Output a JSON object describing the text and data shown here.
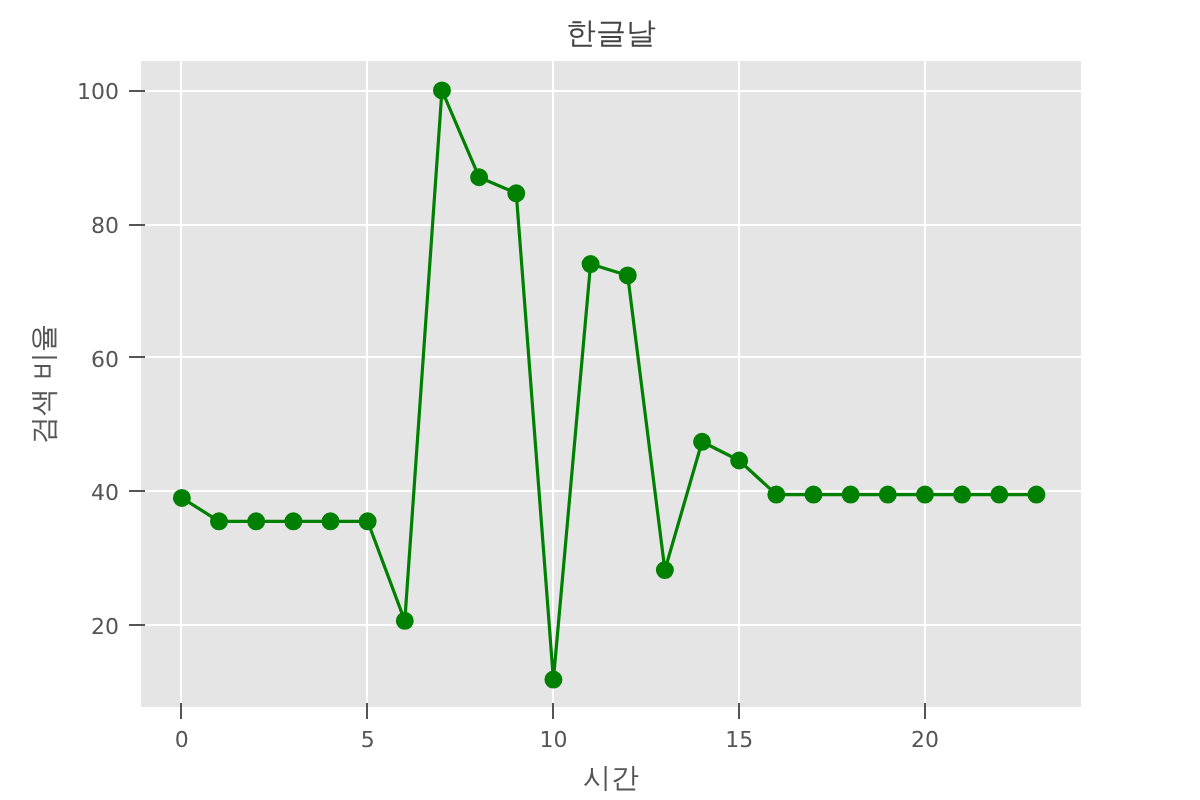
{
  "chart_data": {
    "type": "line",
    "title": "한글날",
    "xlabel": "시간",
    "ylabel": "검색 비율",
    "x": [
      0,
      1,
      2,
      3,
      4,
      5,
      6,
      7,
      8,
      9,
      10,
      11,
      12,
      13,
      14,
      15,
      16,
      17,
      18,
      19,
      20,
      21,
      22,
      23
    ],
    "series": [
      {
        "color": "#008000",
        "values": [
          39,
          35.5,
          35.5,
          35.5,
          35.5,
          35.5,
          20.6,
          100,
          87,
          84.6,
          11.8,
          74,
          72.3,
          28.2,
          47.4,
          44.6,
          39.5,
          39.5,
          39.5,
          39.5,
          39.5,
          39.5,
          39.5,
          39.5
        ]
      }
    ],
    "xlim": [
      -1.1,
      24.2
    ],
    "ylim": [
      7.7,
      104.4
    ],
    "xticks": [
      0,
      5,
      10,
      15,
      20
    ],
    "yticks": [
      20,
      40,
      60,
      80,
      100
    ],
    "grid": true,
    "marker": "circle",
    "line_style": "solid"
  }
}
